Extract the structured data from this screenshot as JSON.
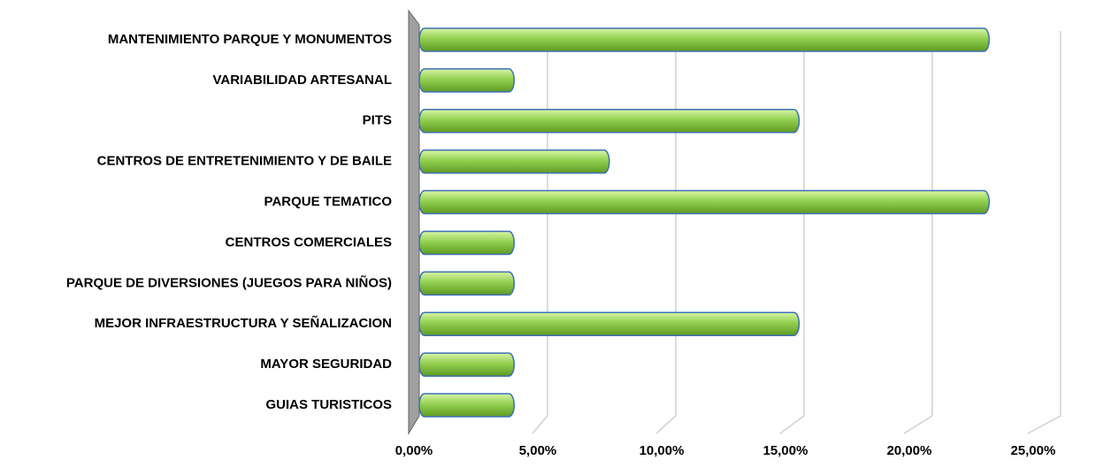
{
  "chart_data": {
    "type": "hbar",
    "categories": [
      "MANTENIMIENTO PARQUE Y MONUMENTOS",
      "VARIABILIDAD ARTESANAL",
      "PITS",
      "CENTROS DE ENTRETENIMIENTO Y DE BAILE",
      "PARQUE TEMATICO",
      "CENTROS COMERCIALES",
      "PARQUE DE DIVERSIONES (JUEGOS PARA NIÑOS)",
      "MEJOR INFRAESTRUCTURA Y SEÑALIZACION",
      "MAYOR SEGURIDAD",
      "GUIAS TURISTICOS"
    ],
    "values": [
      22.22,
      3.7,
      14.81,
      7.41,
      22.22,
      3.7,
      3.7,
      14.81,
      3.7,
      3.7
    ],
    "color": "#92d050",
    "xlim": [
      0,
      25
    ],
    "xticks": [
      {
        "value": 0,
        "label": "0,00%"
      },
      {
        "value": 5,
        "label": "5,00%"
      },
      {
        "value": 10,
        "label": "10,00%"
      },
      {
        "value": 15,
        "label": "15,00%"
      },
      {
        "value": 20,
        "label": "20,00%"
      },
      {
        "value": 25,
        "label": "25,00%"
      }
    ],
    "grid": true
  }
}
